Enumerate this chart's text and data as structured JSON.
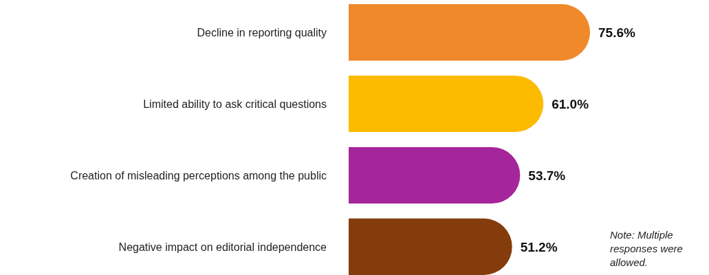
{
  "chart_data": {
    "type": "bar",
    "orientation": "horizontal",
    "categories": [
      "Decline in reporting quality",
      "Limited ability to ask critical questions",
      "Creation of misleading perceptions among the public",
      "Negative impact on editorial independence"
    ],
    "values": [
      75.6,
      61.0,
      53.7,
      51.2
    ],
    "colors": [
      "#f0892a",
      "#fdbb00",
      "#a5259a",
      "#843c0c"
    ],
    "value_labels": [
      "75.6%",
      "61.0%",
      "53.7%",
      "51.2%"
    ],
    "annotations": [
      "Note: Multiple responses were allowed."
    ]
  }
}
